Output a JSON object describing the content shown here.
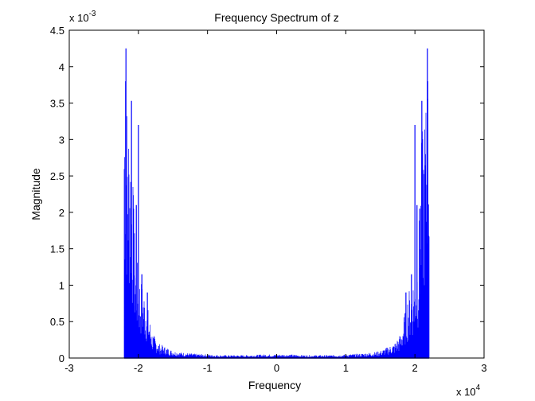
{
  "chart_data": {
    "type": "line",
    "title": "Frequency Spectrum of z",
    "xlabel": "Frequency",
    "ylabel": "Magnitude",
    "xlim": [
      -30000,
      30000
    ],
    "ylim": [
      0,
      0.0045
    ],
    "x_multiplier_label": "x 10",
    "x_multiplier_exp": "4",
    "y_multiplier_label": "x 10",
    "y_multiplier_exp": "-3",
    "x_ticks": [
      -30000,
      -20000,
      -10000,
      0,
      10000,
      20000,
      30000
    ],
    "x_tick_labels": [
      "-3",
      "-2",
      "-1",
      "0",
      "1",
      "2",
      "3"
    ],
    "y_ticks": [
      0,
      0.0005,
      0.001,
      0.0015,
      0.002,
      0.0025,
      0.003,
      0.0035,
      0.004,
      0.0045
    ],
    "y_tick_labels": [
      "0",
      "0.5",
      "1",
      "1.5",
      "2",
      "2.5",
      "3",
      "3.5",
      "4",
      "4.5"
    ],
    "grid": false,
    "series": [
      {
        "color": "#0000ff",
        "x_range": [
          -22050,
          22050
        ],
        "envelope_x": [
          -22050,
          -21800,
          -21500,
          -21000,
          -20500,
          -20000,
          -19000,
          -18000,
          -17000,
          -16000,
          -15000,
          -14000,
          -12000,
          -10000,
          -8000,
          -6000,
          -4000,
          -2000,
          0,
          2000,
          4000,
          6000,
          8000,
          10000,
          12000,
          14000,
          15000,
          16000,
          17000,
          18000,
          19000,
          20000,
          20500,
          21000,
          21500,
          21800,
          22050
        ],
        "envelope_y": [
          0.0042,
          0.0038,
          0.0035,
          0.0031,
          0.0016,
          0.0012,
          0.0009,
          0.00035,
          0.0002,
          0.00015,
          0.0001,
          8e-05,
          6e-05,
          5e-05,
          4e-05,
          4e-05,
          4e-05,
          5e-05,
          5e-05,
          5e-05,
          4e-05,
          4e-05,
          4e-05,
          5e-05,
          6e-05,
          8e-05,
          0.0001,
          0.00015,
          0.0002,
          0.00035,
          0.0009,
          0.0012,
          0.0016,
          0.0031,
          0.0035,
          0.0038,
          0.0042
        ],
        "peaks": [
          {
            "x": -21800,
            "y": 0.00425
          },
          {
            "x": -21850,
            "y": 0.0038
          },
          {
            "x": -21000,
            "y": 0.00353
          },
          {
            "x": -20000,
            "y": 0.0032
          },
          {
            "x": -20700,
            "y": 0.00205
          },
          {
            "x": -20300,
            "y": 0.0021
          },
          {
            "x": -19500,
            "y": 0.00115
          },
          {
            "x": -18700,
            "y": 0.0009
          },
          {
            "x": 18700,
            "y": 0.0009
          },
          {
            "x": 19500,
            "y": 0.00115
          },
          {
            "x": 20000,
            "y": 0.0032
          },
          {
            "x": 20300,
            "y": 0.0021
          },
          {
            "x": 20700,
            "y": 0.00205
          },
          {
            "x": 21000,
            "y": 0.00353
          },
          {
            "x": 21850,
            "y": 0.0038
          },
          {
            "x": 21800,
            "y": 0.00425
          }
        ]
      }
    ]
  }
}
